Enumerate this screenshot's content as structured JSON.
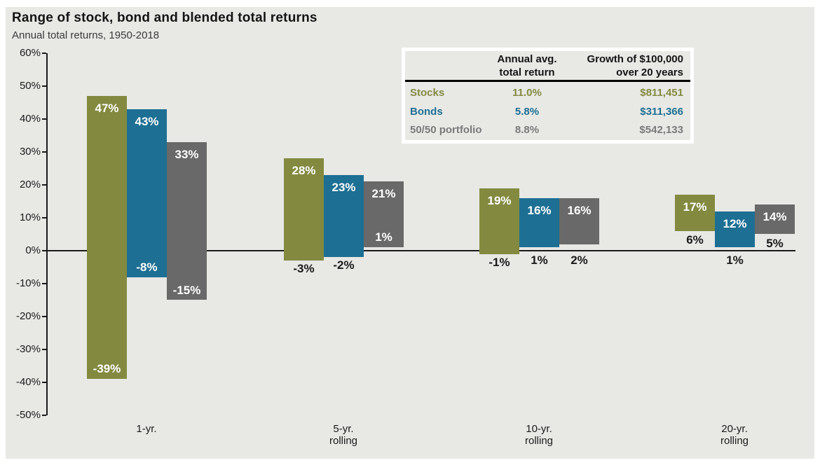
{
  "title": "Range of stock, bond and blended total returns",
  "subtitle": "Annual total returns, 1950-2018",
  "legend_table": {
    "header_col2_line1": "Annual avg.",
    "header_col2_line2": "total return",
    "header_col3_line1": "Growth of $100,000",
    "header_col3_line2": "over 20 years",
    "rows": [
      {
        "label": "Stocks",
        "avg": "11.0%",
        "growth": "$811,451",
        "color": "#838a40"
      },
      {
        "label": "Bonds",
        "avg": "5.8%",
        "growth": "$311,366",
        "color": "#1d6f93"
      },
      {
        "label": "50/50 portfolio",
        "avg": "8.8%",
        "growth": "$542,133",
        "color": "#7a7a7a"
      }
    ]
  },
  "chart_data": {
    "type": "bar",
    "variant": "floating-range-bars",
    "title": "Range of stock, bond and blended total returns",
    "subtitle": "Annual total returns, 1950-2018",
    "categories": [
      "1-yr.",
      "5-yr. rolling",
      "10-yr. rolling",
      "20-yr. rolling"
    ],
    "category_lines": [
      [
        "1-yr."
      ],
      [
        "5-yr.",
        "rolling"
      ],
      [
        "10-yr.",
        "rolling"
      ],
      [
        "20-yr.",
        "rolling"
      ]
    ],
    "ylim": [
      -50,
      60
    ],
    "ytick_step": 10,
    "ytick_labels": [
      "60%",
      "50%",
      "40%",
      "30%",
      "20%",
      "10%",
      "0%",
      "-10%",
      "-20%",
      "-30%",
      "-40%",
      "-50%"
    ],
    "grid": false,
    "zero_line": true,
    "legend_position": "top-right-table",
    "series": [
      {
        "name": "Stocks",
        "color": "#838a40",
        "min": [
          -39,
          -3,
          -1,
          6
        ],
        "max": [
          47,
          28,
          19,
          17
        ],
        "min_labels": [
          "-39%",
          "-3%",
          "-1%",
          "6%"
        ],
        "max_labels": [
          "47%",
          "28%",
          "19%",
          "17%"
        ],
        "min_label_pos": [
          "inside",
          "below",
          "below",
          "below"
        ],
        "annual_avg_total_return": "11.0%",
        "growth_of_100k_over_20_years": "$811,451"
      },
      {
        "name": "Bonds",
        "color": "#1d6f93",
        "min": [
          -8,
          -2,
          1,
          1
        ],
        "max": [
          43,
          23,
          16,
          12
        ],
        "min_labels": [
          "-8%",
          "-2%",
          "1%",
          "1%"
        ],
        "max_labels": [
          "43%",
          "23%",
          "16%",
          "12%"
        ],
        "min_label_pos": [
          "inside",
          "below",
          "below",
          "below"
        ],
        "annual_avg_total_return": "5.8%",
        "growth_of_100k_over_20_years": "$311,366"
      },
      {
        "name": "50/50 portfolio",
        "color": "#696969",
        "min": [
          -15,
          1,
          2,
          5
        ],
        "max": [
          33,
          21,
          16,
          14
        ],
        "min_labels": [
          "-15%",
          "1%",
          "2%",
          "5%"
        ],
        "max_labels": [
          "33%",
          "21%",
          "16%",
          "14%"
        ],
        "min_label_pos": [
          "inside",
          "inside",
          "below",
          "below"
        ],
        "annual_avg_total_return": "8.8%",
        "growth_of_100k_over_20_years": "$542,133"
      }
    ]
  }
}
